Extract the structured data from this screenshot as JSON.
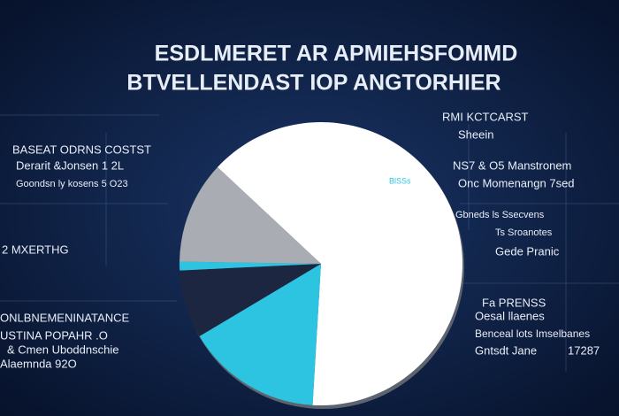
{
  "chart_data": {
    "type": "pie",
    "title": "ESDLMERET AR APMIEHSFOMMD",
    "subtitle": "BTVELLENDAST IOP ANGTORHIER",
    "values": [
      64,
      15.5,
      7.8,
      1,
      11.7
    ],
    "colors": [
      "#ffffff",
      "#2cc4e0",
      "#1c2640",
      "#2cc4e0",
      "#a9acb2"
    ],
    "slice_label": "BlSSs",
    "annotations": [
      "BASEAT ODRNS COSTST",
      "Derarit &Jonsen 1 2L",
      "Goondsn ly kosens 5 O23",
      "2  MXERTHG",
      "ONLBNEMENINATANCE",
      "USTINA POPAHR .O",
      "& Cmen Uboddnschie",
      "Alaemnda 92O",
      "RMI KCTCARST",
      "Sheein",
      "NS7 & O5 Manstronem",
      "Onc Momenangn 7sed",
      "Gbneds ls Ssecvens",
      "Ts Sroanotes",
      "Gede Pranic",
      "Fa PRENSS",
      "Oesal llaenes",
      "Benceal lots Imselbanes",
      "Gntsdt Jane",
      "17287"
    ]
  }
}
